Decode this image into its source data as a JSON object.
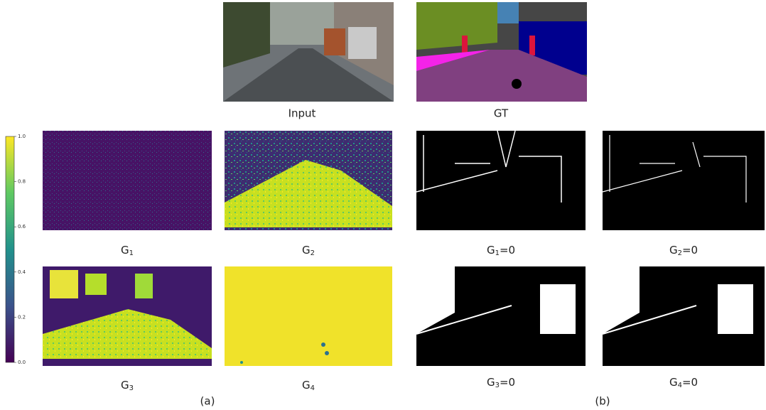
{
  "input": {
    "label": "Input"
  },
  "gt": {
    "label": "GT"
  },
  "gate_maps": [
    {
      "base": "G",
      "sub": "1"
    },
    {
      "base": "G",
      "sub": "2"
    },
    {
      "base": "G",
      "sub": "3"
    },
    {
      "base": "G",
      "sub": "4"
    }
  ],
  "ablations": [
    {
      "base": "G",
      "sub": "1",
      "suffix": "=0"
    },
    {
      "base": "G",
      "sub": "2",
      "suffix": "=0"
    },
    {
      "base": "G",
      "sub": "3",
      "suffix": "=0"
    },
    {
      "base": "G",
      "sub": "4",
      "suffix": "=0"
    }
  ],
  "colorbar": {
    "lim": [
      0,
      1
    ],
    "ticks": [
      {
        "value": 0,
        "label": "0.0"
      },
      {
        "value": 0.2,
        "label": "0.2"
      },
      {
        "value": 0.4,
        "label": "0.4"
      },
      {
        "value": 0.6,
        "label": "0.6"
      },
      {
        "value": 0.8,
        "label": "0.8"
      },
      {
        "value": 1,
        "label": "1.0"
      }
    ]
  },
  "captions": [
    "(a)",
    "(b)"
  ]
}
